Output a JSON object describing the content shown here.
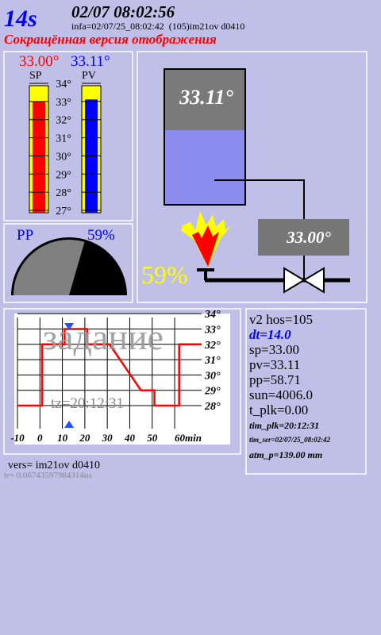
{
  "header": {
    "timer": "14s",
    "datetime": "02/07 08:02:56",
    "info": "infa=02/07/25_08:02:42  (105)im21ov d0410",
    "subtitle": "Сокращённая версия отображения"
  },
  "thermo": {
    "sp_label": "33.00°",
    "pv_label": "33.11°",
    "sp_name": "SP",
    "pv_name": "PV",
    "sp": 33.0,
    "pv": 33.11,
    "sp_color": "#ff0000",
    "pv_color": "#0000ff",
    "ylim": [
      27,
      34
    ],
    "yticks": [
      {
        "value": 34,
        "label": "34°"
      },
      {
        "value": 33,
        "label": "33°"
      },
      {
        "value": 32,
        "label": "32°"
      },
      {
        "value": 31,
        "label": "31°"
      },
      {
        "value": 30,
        "label": "30°"
      },
      {
        "value": 29,
        "label": "29°"
      },
      {
        "value": 28,
        "label": "28°"
      },
      {
        "value": 27,
        "label": "27°"
      }
    ]
  },
  "gauge": {
    "name": "PP",
    "value": 59,
    "value_label": "59%"
  },
  "process": {
    "tank_label": "33.11°",
    "setpoint_label": "33.00°"
  },
  "chart_data": {
    "type": "line",
    "annotation": "задание",
    "time_label": "tz=20:12:31",
    "x": [
      -10,
      1,
      1,
      11,
      11,
      21,
      21,
      31,
      45,
      51,
      51,
      62,
      62,
      72
    ],
    "series": [
      {
        "color": "#ff0000",
        "values": [
          28,
          28,
          32,
          32,
          33,
          33,
          32,
          32,
          29,
          29,
          28,
          28,
          32,
          32
        ]
      }
    ],
    "marker_x": 13,
    "xlim": [
      -10,
      72
    ],
    "ylim": [
      33.75,
      26.5
    ],
    "xticks": [
      -10,
      0,
      10,
      20,
      30,
      40,
      50,
      {
        "value": 60,
        "label": "60min"
      }
    ],
    "yticks": [
      {
        "value": 34,
        "label": "34°"
      },
      {
        "value": 33,
        "label": "33°"
      },
      {
        "value": 32,
        "label": "32°"
      },
      {
        "value": 31,
        "label": "31°"
      },
      {
        "value": 30,
        "label": "30°"
      },
      {
        "value": 29,
        "label": "29°"
      },
      {
        "value": 28,
        "label": "28°"
      }
    ],
    "grid": true
  },
  "info_panel": [
    "v2 hos=105",
    "dt=14.0",
    "sp=33.00",
    "pv=33.11",
    "pp=58.71",
    "sun=4006.0",
    "t_plk=0.00",
    "tim_plk=20:12:31",
    "tim_ser=02/07/25_08:02:42",
    "atm_p=139.00 mm"
  ],
  "footer": {
    "version": "vers= im21ov d0410",
    "timing": "tr= 0.06743597984314us"
  }
}
